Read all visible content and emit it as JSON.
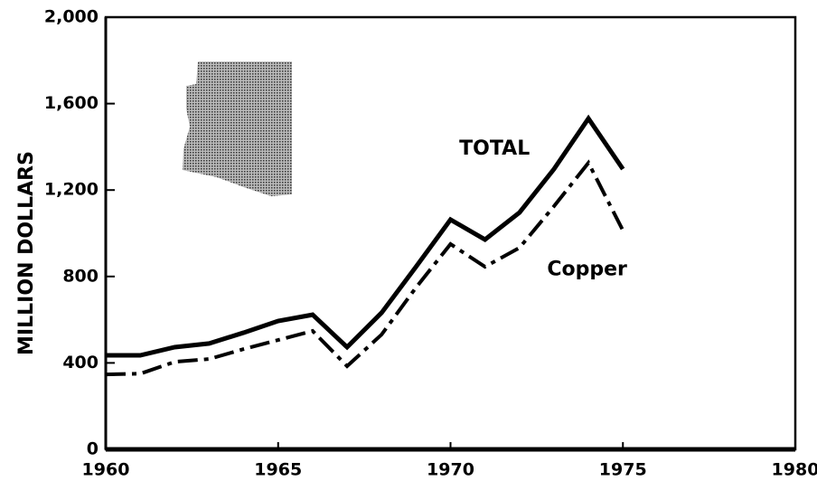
{
  "chart_data": {
    "type": "line",
    "ylabel": "MILLION DOLLARS",
    "x": [
      1960,
      1961,
      1962,
      1963,
      1964,
      1965,
      1966,
      1967,
      1968,
      1969,
      1970,
      1971,
      1972,
      1973,
      1974,
      1975
    ],
    "series": [
      {
        "name": "TOTAL",
        "color": "#000000",
        "values": [
          435,
          435,
          473,
          490,
          540,
          594,
          623,
          473,
          632,
          845,
          1063,
          971,
          1096,
          1297,
          1531,
          1297
        ]
      },
      {
        "name": "Copper",
        "color": "#000000",
        "values": [
          347,
          350,
          405,
          418,
          464,
          506,
          548,
          385,
          531,
          749,
          950,
          845,
          933,
          1125,
          1326,
          1013
        ]
      }
    ],
    "xlim": [
      1960,
      1980
    ],
    "xticks": [
      1960,
      1965,
      1970,
      1975,
      1980
    ],
    "ylim": [
      0,
      2000
    ],
    "yticks": [
      0,
      400,
      800,
      {
        "value": 1200,
        "label": "1,200"
      },
      {
        "value": 1600,
        "label": "1,600"
      },
      {
        "value": 2000,
        "label": "2,000"
      }
    ],
    "grid": false
  }
}
